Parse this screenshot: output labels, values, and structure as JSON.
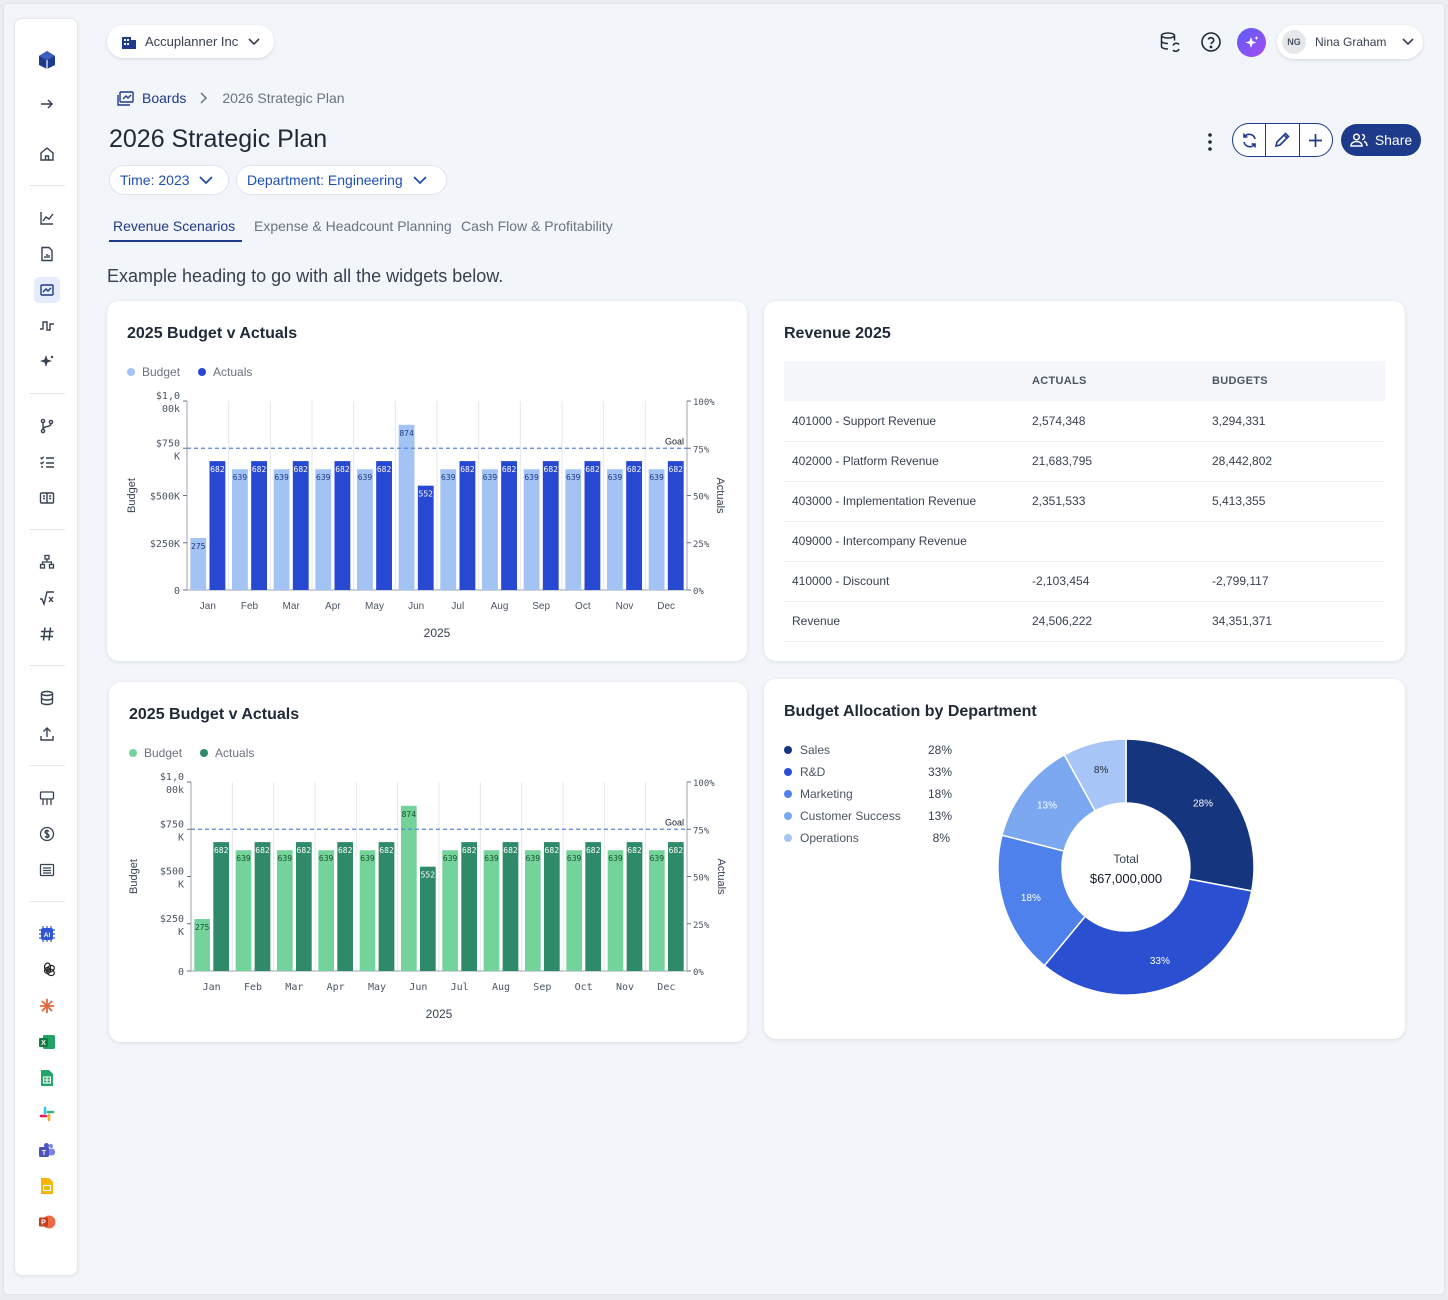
{
  "org": {
    "name": "Accuplanner Inc"
  },
  "user": {
    "initials": "NG",
    "name": "Nina Graham"
  },
  "breadcrumb": {
    "root": "Boards",
    "current": "2026 Strategic Plan"
  },
  "page": {
    "title": "2026 Strategic Plan",
    "share_label": "Share"
  },
  "filters": {
    "time": "Time: 2023",
    "department": "Department: Engineering"
  },
  "tabs": [
    {
      "label": "Revenue Scenarios",
      "active": true
    },
    {
      "label": "Expense & Headcount Planning",
      "active": false
    },
    {
      "label": "Cash Flow & Profitability",
      "active": false
    }
  ],
  "section_heading": "Example heading to go with all the widgets below.",
  "sidebar": {
    "icons": [
      "logo-icon",
      "expand-arrow-icon",
      "home-icon",
      "line-chart-icon",
      "report-icon",
      "boards-icon",
      "signal-icon",
      "sparkle-icon",
      "branch-icon",
      "checklist-icon",
      "book-icon",
      "hierarchy-icon",
      "formula-icon",
      "hash-icon",
      "database-icon",
      "upload-icon",
      "org-chart-icon",
      "dollar-icon",
      "list-icon",
      "ai-icon",
      "openai-icon",
      "claude-icon",
      "excel-icon",
      "google-sheets-icon",
      "slack-icon",
      "teams-icon",
      "google-slides-icon",
      "powerpoint-icon"
    ]
  },
  "colors": {
    "accent": "#1e3a8a",
    "blue_budget": "#a3c3f5",
    "blue_actuals": "#2748d0",
    "green_budget": "#74d39a",
    "green_actuals": "#2e8a68",
    "donut": [
      "#15357f",
      "#2a4fd0",
      "#4e81ec",
      "#7ba8f1",
      "#a7c6f7"
    ]
  },
  "chart_data": [
    {
      "type": "bar",
      "title": "2025 Budget v Actuals",
      "xlabel": "2025",
      "ylabel": "Budget",
      "y2label": "Actuals",
      "categories": [
        "Jan",
        "Feb",
        "Mar",
        "Apr",
        "May",
        "Jun",
        "Jul",
        "Aug",
        "Sep",
        "Oct",
        "Nov",
        "Dec"
      ],
      "series": [
        {
          "name": "Budget",
          "values": [
            275,
            639,
            639,
            639,
            639,
            874,
            639,
            639,
            639,
            639,
            639,
            639
          ],
          "labels": [
            "275",
            "639",
            "639",
            "639",
            "639",
            "874",
            "639",
            "639",
            "639",
            "639",
            "639",
            "639"
          ]
        },
        {
          "name": "Actuals",
          "values": [
            682,
            682,
            682,
            682,
            682,
            552,
            682,
            682,
            682,
            682,
            682,
            682
          ],
          "labels": [
            "682",
            "682",
            "682",
            "682",
            "682",
            "552",
            "682",
            "682",
            "682",
            "682",
            "682",
            "682"
          ]
        }
      ],
      "goal": 750,
      "goal_label": "Goal",
      "ylim": [
        0,
        1000
      ],
      "yticks": [
        [
          "$1,0",
          "00k"
        ],
        [
          "$750",
          "K"
        ],
        [
          "$500K"
        ],
        [
          "$250K"
        ],
        [
          "0"
        ]
      ],
      "y2ticks": [
        "100%",
        "75%",
        "50%",
        "25%",
        "0%"
      ],
      "grid": true,
      "legend": "top-left"
    },
    {
      "type": "bar",
      "title": "2025 Budget v Actuals",
      "xlabel": "2025",
      "ylabel": "Budget",
      "y2label": "Actuals",
      "categories": [
        "Jan",
        "Feb",
        "Mar",
        "Apr",
        "May",
        "Jun",
        "Jul",
        "Aug",
        "Sep",
        "Oct",
        "Nov",
        "Dec"
      ],
      "series": [
        {
          "name": "Budget",
          "values": [
            275,
            639,
            639,
            639,
            639,
            874,
            639,
            639,
            639,
            639,
            639,
            639
          ],
          "labels": [
            "275",
            "639",
            "639",
            "639",
            "639",
            "874",
            "639",
            "639",
            "639",
            "639",
            "639",
            "639"
          ]
        },
        {
          "name": "Actuals",
          "values": [
            682,
            682,
            682,
            682,
            682,
            552,
            682,
            682,
            682,
            682,
            682,
            682
          ],
          "labels": [
            "682",
            "682",
            "682",
            "682",
            "682",
            "552",
            "682",
            "682",
            "682",
            "682",
            "682",
            "682"
          ]
        }
      ],
      "goal": 750,
      "goal_label": "Goal",
      "ylim": [
        0,
        1000
      ],
      "yticks": [
        [
          "$1,0",
          "00k"
        ],
        [
          "$750",
          "K"
        ],
        [
          "$500",
          "K"
        ],
        [
          "$250",
          "K"
        ],
        [
          "0"
        ]
      ],
      "y2ticks": [
        "100%",
        "75%",
        "50%",
        "25%",
        "0%"
      ],
      "grid": true,
      "legend": "top-left"
    },
    {
      "type": "table",
      "title": "Revenue 2025",
      "columns": [
        "",
        "ACTUALS",
        "BUDGETS"
      ],
      "rows": [
        [
          "401000 - Support Revenue",
          "2,574,348",
          "3,294,331"
        ],
        [
          "402000 - Platform Revenue",
          "21,683,795",
          "28,442,802"
        ],
        [
          "403000 - Implementation Revenue",
          "2,351,533",
          "5,413,355"
        ],
        [
          "409000 - Intercompany Revenue",
          "",
          ""
        ],
        [
          "410000 - Discount",
          "-2,103,454",
          "-2,799,117"
        ],
        [
          "Revenue",
          "24,506,222",
          "34,351,371"
        ]
      ]
    },
    {
      "type": "pie",
      "title": "Budget Allocation by Department",
      "center_label": "Total",
      "center_value": "$67,000,000",
      "slices": [
        {
          "name": "Sales",
          "value": 28,
          "label": "28%"
        },
        {
          "name": "R&D",
          "value": 33,
          "label": "33%"
        },
        {
          "name": "Marketing",
          "value": 18,
          "label": "18%"
        },
        {
          "name": "Customer Success",
          "value": 13,
          "label": "13%"
        },
        {
          "name": "Operations",
          "value": 8,
          "label": "8%"
        }
      ],
      "legend": "left"
    }
  ]
}
